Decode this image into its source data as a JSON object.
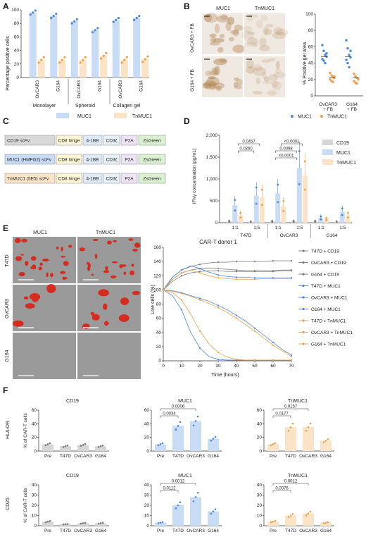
{
  "colors": {
    "muc1": "#b9d2f2",
    "muc1_dark": "#4a86d6",
    "muc1_bar": "#c9dcf5",
    "tnmuc1": "#f8d9b6",
    "tnmuc1_dark": "#f0a04b",
    "tnmuc1_bar": "#fbe3c8",
    "cd19": "#d6d6d6",
    "cd19_dark": "#7a7a7a",
    "construct_cd19": "#d9d9d9",
    "construct_muc1": "#c9dcf5",
    "construct_tnmuc1": "#fbe3c8",
    "hinge": "#fff6d6",
    "bb": "#dfeaf7",
    "cd3": "#e7f0f6",
    "p2a": "#ece3f5",
    "zsgreen": "#d9f0d1",
    "ihc_bg": "#efe9e2",
    "ihc_stain": "#b58a5a",
    "mic_bg": "#9a9a9a",
    "mic_red": "#d62b1e"
  },
  "panels": {
    "A": "A",
    "B": "B",
    "C": "C",
    "D": "D",
    "E": "E",
    "F": "F"
  },
  "panel_a": {
    "ylabel": "Percentage positive cells",
    "groups": [
      "Monolayer",
      "Spheroid",
      "Collagen gel"
    ],
    "cells": [
      "OvCAR3",
      "G164",
      "OvCAR3",
      "G164",
      "OvCAR3",
      "G164"
    ],
    "legend": {
      "muc1": "MUC1",
      "tnmuc1": "TnMUC1"
    }
  },
  "panel_b": {
    "col_titles": [
      "MUC1",
      "TnMUC1"
    ],
    "row_titles": [
      "OvCAR3 + FB",
      "G164 + FB"
    ],
    "ylabel": "% Positive gel area",
    "xticks": [
      "OvCAR3\n+ FB",
      "G164\n+ FB"
    ],
    "legend": {
      "muc1": "MUC1",
      "tnmuc1": "TnMUC1"
    }
  },
  "panel_c": {
    "constructs": [
      {
        "scfv": "CD19 scFv",
        "kind": "cd19"
      },
      {
        "scfv": "MUC1 (HMFG2) scFv",
        "kind": "muc1"
      },
      {
        "scfv": "TnMUC1 (5E5) scFv",
        "kind": "tnmuc1"
      }
    ],
    "domains": [
      "CD8 hinge",
      "4-1BB",
      "CD3ζ",
      "P2A",
      "ZsGreen"
    ]
  },
  "panel_d": {
    "ylabel": "IFNγ concentration (pg/mL)",
    "ratios": [
      "1:1",
      "1:5",
      "1:1",
      "1:5",
      "1:1",
      "1:5"
    ],
    "cells": [
      "T47D",
      "OvCAR3",
      "G164"
    ],
    "legend": [
      "CD19",
      "MUC1",
      "TnMUC1"
    ],
    "pvalues": [
      "0.0457",
      "0.0260",
      "0.0098",
      "<0.0001",
      "<0.0001"
    ]
  },
  "panel_e": {
    "col_titles": [
      "MUC1",
      "TnMUC1"
    ],
    "row_titles": [
      "T47D",
      "OvCAR3",
      "G164"
    ],
    "title": "CAR-T donor 1",
    "xlabel": "Time (hours)",
    "ylabel": "Live cells (%)",
    "legend": [
      "T47D + CD19",
      "OvCAR3 + CD19",
      "G164 + CD19",
      "T47D + MUC1",
      "OvCAR3 + MUC1",
      "G164 + MUC1",
      "T47D + TnMUC1",
      "OvCAR3 + TnMUC1",
      "G164 + TnMUC1"
    ]
  },
  "panel_f": {
    "row_labels": [
      "HLA-DR",
      "CD25"
    ],
    "ylabel": "% of CAR-T cells",
    "titles": [
      "CD19",
      "MUC1",
      "TnMUC1"
    ],
    "xticks": [
      "Pre",
      "T47D",
      "OvCAR3",
      "G164"
    ],
    "pvals": {
      "hla_muc1": [
        "0.0006",
        "0.0034"
      ],
      "hla_tnmuc1": [
        "0.0157",
        "0.0177"
      ],
      "cd25_muc1": [
        "0.0012",
        "0.0112"
      ],
      "cd25_tnmuc1": [
        "0.0012",
        "0.0076"
      ]
    }
  },
  "chart_data": [
    {
      "type": "bar",
      "panel": "A",
      "categories": [
        "OvCAR3",
        "G164",
        "OvCAR3",
        "G164",
        "OvCAR3",
        "G164"
      ],
      "groups": [
        "Monolayer",
        "Monolayer",
        "Spheroid",
        "Spheroid",
        "Collagen gel",
        "Collagen gel"
      ],
      "ylim": [
        0,
        100
      ],
      "yticks": [
        0,
        20,
        40,
        60,
        80,
        100
      ],
      "series": [
        {
          "name": "MUC1",
          "values": [
            96,
            91,
            83,
            70,
            85,
            88
          ]
        },
        {
          "name": "TnMUC1",
          "values": [
            26,
            26,
            26,
            32,
            26,
            27
          ]
        }
      ]
    },
    {
      "type": "scatter",
      "panel": "B",
      "categories": [
        "OvCAR3 + FB",
        "G164 + FB"
      ],
      "ylim": [
        0,
        100
      ],
      "yticks": [
        0,
        20,
        40,
        60,
        80,
        100
      ],
      "series": [
        {
          "name": "MUC1",
          "values": [
            [
              62,
              55,
              50,
              48,
              45,
              43,
              40,
              52
            ],
            [
              68,
              58,
              50,
              47,
              44,
              40,
              35,
              55
            ]
          ]
        },
        {
          "name": "TnMUC1",
          "values": [
            [
              28,
              25,
              23,
              22,
              20,
              18,
              17,
              24
            ],
            [
              27,
              24,
              22,
              20,
              18,
              16,
              15,
              21
            ]
          ]
        }
      ]
    },
    {
      "type": "bar",
      "panel": "D",
      "categories": [
        "T47D 1:1",
        "T47D 1:5",
        "OvCAR3 1:1",
        "OvCAR3 1:5",
        "G164 1:1",
        "G164 1:5"
      ],
      "ylim": [
        0,
        2000
      ],
      "yticks": [
        0,
        500,
        1000,
        1500,
        2000
      ],
      "series": [
        {
          "name": "CD19",
          "values": [
            30,
            20,
            30,
            30,
            30,
            20
          ]
        },
        {
          "name": "MUC1",
          "values": [
            400,
            620,
            670,
            1260,
            110,
            250
          ]
        },
        {
          "name": "TnMUC1",
          "values": [
            170,
            580,
            380,
            1080,
            80,
            170
          ]
        }
      ]
    },
    {
      "type": "line",
      "panel": "E",
      "title": "CAR-T donor 1",
      "xlabel": "Time (hours)",
      "ylabel": "Live cells (%)",
      "xlim": [
        0,
        70
      ],
      "ylim": [
        0,
        160
      ],
      "xticks": [
        0,
        10,
        20,
        30,
        40,
        50,
        60,
        70
      ],
      "yticks": [
        0,
        20,
        40,
        60,
        80,
        100,
        120,
        140,
        160
      ],
      "x": [
        0,
        5,
        10,
        15,
        20,
        25,
        30,
        35,
        40,
        45,
        50,
        55,
        60,
        65,
        70
      ],
      "series": [
        {
          "name": "T47D + CD19",
          "values": [
            100,
            118,
            128,
            133,
            136,
            138,
            139,
            139,
            140,
            140,
            140,
            140,
            141,
            141,
            141
          ]
        },
        {
          "name": "OvCAR3 + CD19",
          "values": [
            100,
            115,
            124,
            128,
            130,
            131,
            130,
            129,
            128,
            127,
            127,
            127,
            127,
            128,
            128
          ]
        },
        {
          "name": "G164 + CD19",
          "values": [
            100,
            112,
            120,
            124,
            126,
            127,
            127,
            126,
            126,
            126,
            126,
            126,
            126,
            127,
            127
          ]
        },
        {
          "name": "T47D + MUC1",
          "values": [
            100,
            99,
            96,
            92,
            88,
            84,
            78,
            72,
            64,
            56,
            46,
            36,
            26,
            16,
            8
          ]
        },
        {
          "name": "OvCAR3 + MUC1",
          "values": [
            100,
            92,
            72,
            40,
            18,
            6,
            2,
            1,
            1,
            1,
            1,
            1,
            1,
            1,
            1
          ]
        },
        {
          "name": "G164 + MUC1",
          "values": [
            100,
            118,
            128,
            134,
            130,
            125,
            121,
            119,
            118,
            118,
            117,
            117,
            117,
            117,
            117
          ]
        },
        {
          "name": "T47D + TnMUC1",
          "values": [
            100,
            98,
            95,
            91,
            86,
            81,
            75,
            68,
            60,
            51,
            42,
            32,
            22,
            14,
            6
          ]
        },
        {
          "name": "OvCAR3 + TnMUC1",
          "values": [
            100,
            96,
            86,
            66,
            42,
            24,
            12,
            5,
            2,
            1,
            1,
            1,
            1,
            1,
            1
          ]
        },
        {
          "name": "G164 + TnMUC1",
          "values": [
            100,
            115,
            124,
            128,
            124,
            120,
            117,
            116,
            115,
            115,
            115,
            116,
            116,
            116,
            116
          ]
        }
      ]
    },
    {
      "type": "bar",
      "panel": "F",
      "categories": [
        "Pre",
        "T47D",
        "OvCAR3",
        "G164"
      ],
      "ylim": [
        0,
        60
      ],
      "yticks": [
        0,
        20,
        40,
        60
      ],
      "charts": [
        {
          "row": "HLA-DR",
          "title": "CD19",
          "values": [
            10,
            7,
            9,
            7
          ]
        },
        {
          "row": "HLA-DR",
          "title": "MUC1",
          "values": [
            10,
            37,
            44,
            18
          ]
        },
        {
          "row": "HLA-DR",
          "title": "TnMUC1",
          "values": [
            10,
            35,
            35,
            15
          ]
        },
        {
          "row": "CD25",
          "title": "CD19",
          "values": [
            4,
            1.5,
            2.5,
            2.5
          ],
          "ylim": [
            0,
            40
          ],
          "yticks": [
            0,
            10,
            20,
            30,
            40
          ]
        },
        {
          "row": "CD25",
          "title": "MUC1",
          "values": [
            3,
            20,
            28,
            14
          ],
          "ylim": [
            0,
            40
          ],
          "yticks": [
            0,
            10,
            20,
            30,
            40
          ]
        },
        {
          "row": "CD25",
          "title": "TnMUC1",
          "values": [
            4,
            10,
            12,
            3
          ],
          "ylim": [
            0,
            40
          ],
          "yticks": [
            0,
            10,
            20,
            30,
            40
          ]
        }
      ]
    }
  ]
}
